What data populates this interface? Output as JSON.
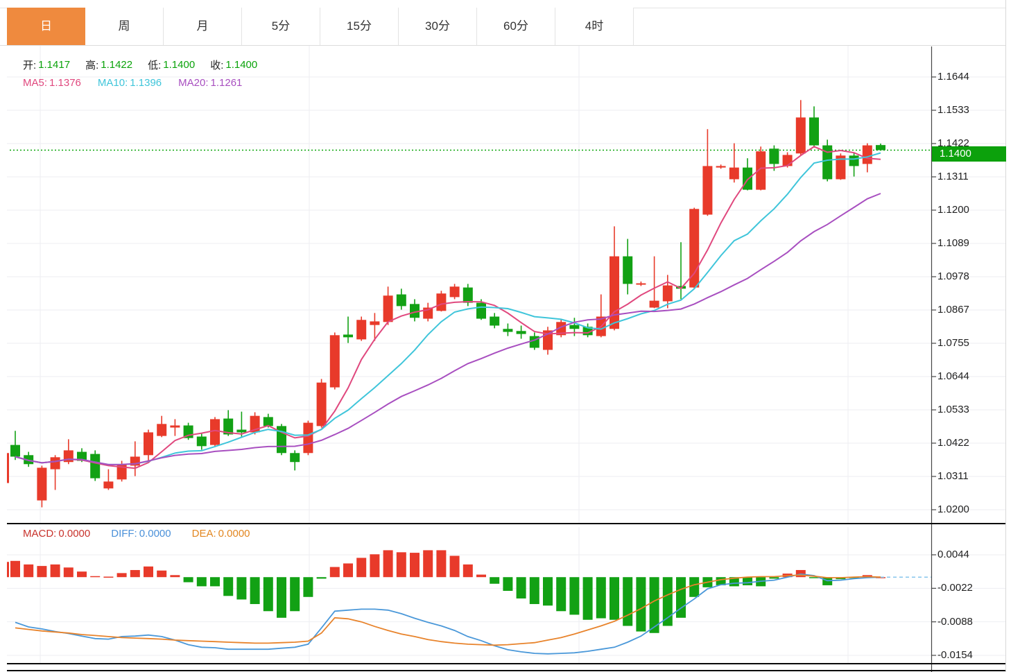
{
  "tabs": {
    "items": [
      {
        "label": "日",
        "name": "tab-day",
        "active": true
      },
      {
        "label": "周",
        "name": "tab-week",
        "active": false
      },
      {
        "label": "月",
        "name": "tab-month",
        "active": false
      },
      {
        "label": "5分",
        "name": "tab-5min",
        "active": false
      },
      {
        "label": "15分",
        "name": "tab-15min",
        "active": false
      },
      {
        "label": "30分",
        "name": "tab-30min",
        "active": false
      },
      {
        "label": "60分",
        "name": "tab-60min",
        "active": false
      },
      {
        "label": "4时",
        "name": "tab-4hour",
        "active": false
      }
    ]
  },
  "ohlc": {
    "open_label": "开:",
    "open": "1.1417",
    "high_label": "高:",
    "high": "1.1422",
    "low_label": "低:",
    "low": "1.1400",
    "close_label": "收:",
    "close": "1.1400"
  },
  "ma": {
    "ma5_label": "MA5:",
    "ma5": "1.1376",
    "ma10_label": "MA10:",
    "ma10": "1.1396",
    "ma20_label": "MA20:",
    "ma20": "1.1261"
  },
  "macd_row": {
    "macd_label": "MACD:",
    "macd": "0.0000",
    "diff_label": "DIFF:",
    "diff": "0.0000",
    "dea_label": "DEA:",
    "dea": "0.0000"
  },
  "price_tag": {
    "value": "1.1400"
  },
  "colors": {
    "up": "#e83a2a",
    "down": "#12a114",
    "ma5": "#e0487e",
    "ma10": "#3fc5da",
    "ma20": "#a84fc0",
    "diff_line": "#4a98d9",
    "dea_line": "#e8832b",
    "macd_text": "#c8322b",
    "diff_text": "#4a90d9",
    "dea_text": "#e2861f",
    "ohlc_value": "#0aa30a",
    "tag_bg": "#0ca10c",
    "ref_line": "#0aa50a",
    "grid": "#edeef2",
    "axis": "#454545",
    "zero_dash": "#86c5ec",
    "tab_active_bg": "#ef8a3e",
    "label_text": "#222222"
  },
  "chart_data": [
    {
      "type": "candlestick",
      "panel": "price",
      "grid": true,
      "legend_position": "top-left",
      "reference_line": 1.14,
      "ma_periods": [
        5,
        10,
        20
      ],
      "y_axis": {
        "labels": [
          "1.1644",
          "1.1533",
          "1.1422",
          "1.1311",
          "1.1200",
          "1.1089",
          "1.0978",
          "1.0867",
          "1.0755",
          "1.0644",
          "1.0533",
          "1.0422",
          "1.0311",
          "1.0200"
        ],
        "values": [
          1.1644,
          1.1533,
          1.1422,
          1.1311,
          1.12,
          1.1089,
          1.0978,
          1.0867,
          1.0755,
          1.0644,
          1.0533,
          1.0422,
          1.0311,
          1.02
        ]
      },
      "partial_first_candle": {
        "o": 1.029,
        "c": 1.039
      },
      "candles_ohlc_format": [
        "open",
        "high",
        "low",
        "close"
      ],
      "candles": [
        [
          1.0417,
          1.0464,
          1.0367,
          1.0378
        ],
        [
          1.0383,
          1.0394,
          1.0344,
          1.0353
        ],
        [
          1.0232,
          1.0348,
          1.0209,
          1.0341
        ],
        [
          1.0336,
          1.0383,
          1.0267,
          1.0376
        ],
        [
          1.036,
          1.0436,
          1.0353,
          1.0399
        ],
        [
          1.0394,
          1.0406,
          1.036,
          1.0364
        ],
        [
          1.0387,
          1.0399,
          1.0297,
          1.0306
        ],
        [
          1.0272,
          1.0336,
          1.0267,
          1.0295
        ],
        [
          1.0302,
          1.0364,
          1.0295,
          1.0353
        ],
        [
          1.0348,
          1.0429,
          1.0313,
          1.0378
        ],
        [
          1.0383,
          1.0468,
          1.0364,
          1.0459
        ],
        [
          1.0447,
          1.0514,
          1.0443,
          1.0487
        ],
        [
          1.0475,
          1.0503,
          1.0447,
          1.0482
        ],
        [
          1.0482,
          1.0491,
          1.0434,
          1.044
        ],
        [
          1.0445,
          1.0457,
          1.0401,
          1.0413
        ],
        [
          1.0417,
          1.051,
          1.041,
          1.0503
        ],
        [
          1.0505,
          1.0533,
          1.0447,
          1.0452
        ],
        [
          1.0468,
          1.0528,
          1.0445,
          1.0459
        ],
        [
          1.0459,
          1.0526,
          1.0452,
          1.0514
        ],
        [
          1.051,
          1.0521,
          1.0475,
          1.048
        ],
        [
          1.048,
          1.0487,
          1.0383,
          1.039
        ],
        [
          1.039,
          1.0399,
          1.0332,
          1.036
        ],
        [
          1.039,
          1.0498,
          1.0383,
          1.0491
        ],
        [
          1.048,
          1.0637,
          1.0475,
          1.0625
        ],
        [
          1.0609,
          1.0792,
          1.0602,
          1.0783
        ],
        [
          1.0785,
          1.0845,
          1.0757,
          1.0776
        ],
        [
          1.0769,
          1.0845,
          1.0764,
          1.0834
        ],
        [
          1.0817,
          1.0857,
          1.0764,
          1.0829
        ],
        [
          1.0827,
          1.0945,
          1.0817,
          1.0915
        ],
        [
          1.0919,
          1.0938,
          1.0868,
          1.088
        ],
        [
          1.0887,
          1.0903,
          1.0829,
          1.0841
        ],
        [
          1.0838,
          1.0891,
          1.0829,
          1.0875
        ],
        [
          1.0864,
          1.0931,
          1.0862,
          1.0922
        ],
        [
          1.091,
          1.0954,
          1.0903,
          1.0945
        ],
        [
          1.0942,
          1.0954,
          1.088,
          1.0891
        ],
        [
          1.0891,
          1.0903,
          1.0834,
          1.0838
        ],
        [
          1.0845,
          1.0857,
          1.0806,
          1.0815
        ],
        [
          1.0804,
          1.0822,
          1.078,
          1.0794
        ],
        [
          1.0797,
          1.0815,
          1.0771,
          1.0787
        ],
        [
          1.078,
          1.0792,
          1.0734,
          1.0741
        ],
        [
          1.0734,
          1.0811,
          1.0718,
          1.0799
        ],
        [
          1.0783,
          1.0838,
          1.0776,
          1.0827
        ],
        [
          1.0817,
          1.0841,
          1.078,
          1.0804
        ],
        [
          1.0811,
          1.0822,
          1.0776,
          1.0783
        ],
        [
          1.078,
          1.0919,
          1.0776,
          1.0845
        ],
        [
          1.0804,
          1.1146,
          1.0799,
          1.1046
        ],
        [
          1.1046,
          1.1104,
          1.0919,
          1.0954
        ],
        [
          1.0952,
          1.0962,
          1.0947,
          1.0956
        ],
        [
          1.0875,
          1.1046,
          1.0873,
          1.0898
        ],
        [
          1.0896,
          1.0984,
          1.0873,
          1.0949
        ],
        [
          1.0947,
          1.1093,
          1.0903,
          1.0938
        ],
        [
          1.0942,
          1.1208,
          1.0938,
          1.1204
        ],
        [
          1.1185,
          1.147,
          1.1181,
          1.1347
        ],
        [
          1.1342,
          1.1352,
          1.1338,
          1.1347
        ],
        [
          1.1303,
          1.1423,
          1.1292,
          1.1342
        ],
        [
          1.1342,
          1.1373,
          1.1266,
          1.1268
        ],
        [
          1.1268,
          1.1412,
          1.1266,
          1.1396
        ],
        [
          1.1405,
          1.1416,
          1.1331,
          1.1354
        ],
        [
          1.1347,
          1.1393,
          1.1342,
          1.1384
        ],
        [
          1.1389,
          1.1567,
          1.1384,
          1.1509
        ],
        [
          1.1509,
          1.1546,
          1.1412,
          1.1416
        ],
        [
          1.1416,
          1.1435,
          1.1296,
          1.1303
        ],
        [
          1.1303,
          1.1389,
          1.1301,
          1.1382
        ],
        [
          1.1382,
          1.1393,
          1.1312,
          1.1347
        ],
        [
          1.1354,
          1.1423,
          1.1326,
          1.1416
        ],
        [
          1.1417,
          1.1422,
          1.14,
          1.14
        ]
      ]
    },
    {
      "type": "bar",
      "panel": "macd",
      "grid": true,
      "y_axis": {
        "labels": [
          "0.0044",
          "-0.0022",
          "-0.0088",
          "-0.0154"
        ],
        "values": [
          0.0044,
          -0.0022,
          -0.0088,
          -0.0154
        ]
      },
      "partial_first_bar": 0.003,
      "histogram": [
        0.0032,
        0.0025,
        0.0022,
        0.0025,
        0.0019,
        0.0011,
        0.0002,
        0.0001,
        0.0008,
        0.0014,
        0.0021,
        0.0013,
        0.0004,
        -0.001,
        -0.0018,
        -0.0018,
        -0.0037,
        -0.0044,
        -0.0053,
        -0.0067,
        -0.008,
        -0.0067,
        -0.0039,
        -0.0003,
        0.002,
        0.0027,
        0.0038,
        0.0045,
        0.0053,
        0.0049,
        0.0048,
        0.0053,
        0.0053,
        0.0042,
        0.0025,
        0.0005,
        -0.0013,
        -0.0027,
        -0.0042,
        -0.0053,
        -0.0056,
        -0.0067,
        -0.0074,
        -0.0084,
        -0.0081,
        -0.0084,
        -0.0096,
        -0.0107,
        -0.011,
        -0.0096,
        -0.008,
        -0.0039,
        -0.002,
        -0.0016,
        -0.0018,
        -0.0016,
        -0.0018,
        -0.0003,
        0.0007,
        0.0014,
        -0.0002,
        -0.0016,
        -0.0004,
        -0.0002,
        0.0004,
        0.0
      ],
      "series": [
        {
          "name": "DIFF",
          "values": [
            -0.0089,
            -0.0098,
            -0.0102,
            -0.0107,
            -0.0111,
            -0.0116,
            -0.0121,
            -0.0122,
            -0.0117,
            -0.0116,
            -0.0114,
            -0.0117,
            -0.0124,
            -0.0133,
            -0.0138,
            -0.0139,
            -0.0142,
            -0.0142,
            -0.0142,
            -0.0142,
            -0.014,
            -0.0138,
            -0.0132,
            -0.01,
            -0.0067,
            -0.0065,
            -0.0063,
            -0.0063,
            -0.0065,
            -0.0072,
            -0.0081,
            -0.0089,
            -0.0096,
            -0.0105,
            -0.0117,
            -0.0125,
            -0.0135,
            -0.0143,
            -0.0147,
            -0.015,
            -0.0151,
            -0.015,
            -0.0149,
            -0.0146,
            -0.0142,
            -0.0138,
            -0.0128,
            -0.0116,
            -0.0098,
            -0.008,
            -0.0061,
            -0.0043,
            -0.0023,
            -0.0015,
            -0.0012,
            -0.0011,
            -0.0008,
            -0.0006,
            0.0,
            0.0006,
            0.0003,
            -0.0007,
            -0.0006,
            -0.0003,
            -0.0001,
            0.0
          ]
        },
        {
          "name": "DEA",
          "values": [
            -0.01,
            -0.0103,
            -0.0106,
            -0.0108,
            -0.011,
            -0.0113,
            -0.0115,
            -0.0117,
            -0.0119,
            -0.012,
            -0.0121,
            -0.0122,
            -0.0124,
            -0.0125,
            -0.0126,
            -0.0127,
            -0.0128,
            -0.0129,
            -0.013,
            -0.013,
            -0.0129,
            -0.0128,
            -0.0126,
            -0.011,
            -0.008,
            -0.0082,
            -0.0088,
            -0.0097,
            -0.0105,
            -0.0112,
            -0.0117,
            -0.0123,
            -0.0127,
            -0.013,
            -0.0132,
            -0.0133,
            -0.0134,
            -0.0133,
            -0.0131,
            -0.0129,
            -0.0124,
            -0.0119,
            -0.0112,
            -0.0104,
            -0.0096,
            -0.0087,
            -0.0075,
            -0.0062,
            -0.0047,
            -0.0035,
            -0.0024,
            -0.0015,
            -0.001,
            -0.0005,
            -0.0002,
            0.0,
            0.0001,
            0.0001,
            0.0003,
            0.0004,
            0.0002,
            -0.0001,
            -0.0001,
            0.0,
            0.0001,
            0.0
          ]
        }
      ]
    }
  ]
}
